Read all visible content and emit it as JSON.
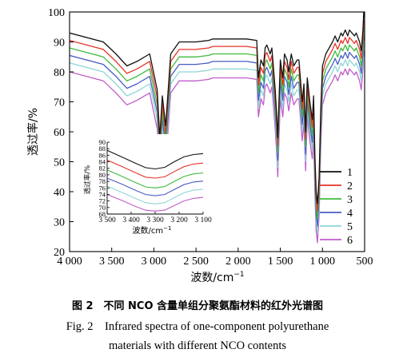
{
  "chart_data": [
    {
      "type": "line",
      "title": "",
      "xlabel": "波数/cm",
      "xlabel_sup": "−1",
      "ylabel": "透过率/%",
      "xlim": [
        4000,
        500
      ],
      "ylim": [
        20,
        100
      ],
      "x_reversed": true,
      "xticks": [
        4000,
        3500,
        3000,
        2500,
        2000,
        1500,
        1000,
        500
      ],
      "xtick_labels": [
        "4 000",
        "3 500",
        "3 000",
        "2 500",
        "2 000",
        "1 500",
        "1 000",
        "500"
      ],
      "yticks": [
        20,
        30,
        40,
        50,
        60,
        70,
        80,
        90,
        100
      ],
      "ytick_labels": [
        "20",
        "30",
        "40",
        "50",
        "60",
        "70",
        "80",
        "90",
        "100"
      ],
      "grid": false,
      "legend_position": "right-bottom",
      "series": [
        {
          "name": "1",
          "color": "#111111",
          "offset": 0,
          "x": [
            4000,
            3600,
            3450,
            3320,
            3200,
            3050,
            2960,
            2930,
            2900,
            2860,
            2800,
            2700,
            2500,
            2350,
            2300,
            2100,
            1900,
            1780,
            1760,
            1730,
            1700,
            1680,
            1660,
            1620,
            1600,
            1560,
            1540,
            1530,
            1500,
            1470,
            1450,
            1420,
            1400,
            1370,
            1340,
            1300,
            1280,
            1240,
            1220,
            1200,
            1180,
            1150,
            1120,
            1105,
            1090,
            1075,
            1060,
            1040,
            1020,
            1000,
            960,
            920,
            880,
            850,
            820,
            780,
            760,
            730,
            700,
            680,
            650,
            620,
            600,
            560,
            540,
            520,
            510,
            500
          ],
          "y": [
            93,
            90,
            86,
            82,
            83.5,
            86,
            74,
            58,
            72,
            62,
            86,
            90,
            90,
            90.5,
            91,
            91,
            91,
            90.5,
            78,
            84,
            82,
            88,
            89,
            86,
            88,
            74,
            64,
            58,
            84,
            78,
            86,
            84,
            80,
            86,
            82,
            84,
            84,
            70,
            76,
            60,
            78,
            70,
            64,
            72,
            52,
            40,
            36,
            45,
            68,
            82,
            86,
            88,
            90,
            92,
            90,
            93,
            92,
            94,
            92,
            94,
            93,
            92,
            93,
            90,
            87,
            94,
            100,
            98
          ]
        },
        {
          "name": "2",
          "color": "#e63329",
          "offset": -2.5,
          "x": [
            4000,
            3600,
            3450,
            3320,
            3200,
            3050,
            2960,
            2930,
            2900,
            2860,
            2800,
            2700,
            2500,
            2350,
            2300,
            2100,
            1900,
            1780,
            1760,
            1730,
            1700,
            1680,
            1660,
            1620,
            1600,
            1560,
            1540,
            1530,
            1500,
            1470,
            1450,
            1420,
            1400,
            1370,
            1340,
            1300,
            1280,
            1240,
            1220,
            1200,
            1180,
            1150,
            1120,
            1105,
            1090,
            1075,
            1060,
            1040,
            1020,
            1000,
            960,
            920,
            880,
            850,
            820,
            780,
            760,
            730,
            700,
            680,
            650,
            620,
            600,
            560,
            540,
            520,
            510,
            500
          ],
          "y": [
            93,
            90,
            86,
            82,
            83.5,
            86,
            74,
            58,
            72,
            62,
            86,
            90,
            90,
            90.5,
            91,
            91,
            91,
            90.5,
            78,
            84,
            82,
            88,
            89,
            86,
            88,
            74,
            64,
            58,
            84,
            78,
            86,
            84,
            80,
            86,
            82,
            84,
            84,
            70,
            76,
            60,
            78,
            70,
            64,
            72,
            52,
            40,
            36,
            45,
            68,
            82,
            86,
            88,
            90,
            92,
            90,
            93,
            92,
            94,
            92,
            94,
            93,
            92,
            93,
            90,
            87,
            94,
            100,
            98
          ]
        },
        {
          "name": "3",
          "color": "#3dbb3d",
          "offset": -5,
          "x": [
            4000,
            3600,
            3450,
            3320,
            3200,
            3050,
            2960,
            2930,
            2900,
            2860,
            2800,
            2700,
            2500,
            2350,
            2300,
            2100,
            1900,
            1780,
            1760,
            1730,
            1700,
            1680,
            1660,
            1620,
            1600,
            1560,
            1540,
            1530,
            1500,
            1470,
            1450,
            1420,
            1400,
            1370,
            1340,
            1300,
            1280,
            1240,
            1220,
            1200,
            1180,
            1150,
            1120,
            1105,
            1090,
            1075,
            1060,
            1040,
            1020,
            1000,
            960,
            920,
            880,
            850,
            820,
            780,
            760,
            730,
            700,
            680,
            650,
            620,
            600,
            560,
            540,
            520,
            510,
            500
          ],
          "y": [
            93,
            90,
            86,
            82,
            83.5,
            86,
            74,
            58,
            72,
            62,
            86,
            90,
            90,
            90.5,
            91,
            91,
            91,
            90.5,
            78,
            84,
            82,
            88,
            89,
            86,
            88,
            74,
            64,
            58,
            84,
            78,
            86,
            84,
            80,
            86,
            82,
            84,
            84,
            70,
            76,
            60,
            78,
            70,
            64,
            72,
            52,
            40,
            36,
            45,
            68,
            82,
            86,
            88,
            90,
            92,
            90,
            93,
            92,
            94,
            92,
            94,
            93,
            92,
            93,
            90,
            87,
            94,
            100,
            98
          ]
        },
        {
          "name": "4",
          "color": "#4a5bc4",
          "offset": -7.5,
          "x": [
            4000,
            3600,
            3450,
            3320,
            3200,
            3050,
            2960,
            2930,
            2900,
            2860,
            2800,
            2700,
            2500,
            2350,
            2300,
            2100,
            1900,
            1780,
            1760,
            1730,
            1700,
            1680,
            1660,
            1620,
            1600,
            1560,
            1540,
            1530,
            1500,
            1470,
            1450,
            1420,
            1400,
            1370,
            1340,
            1300,
            1280,
            1240,
            1220,
            1200,
            1180,
            1150,
            1120,
            1105,
            1090,
            1075,
            1060,
            1040,
            1020,
            1000,
            960,
            920,
            880,
            850,
            820,
            780,
            760,
            730,
            700,
            680,
            650,
            620,
            600,
            560,
            540,
            520,
            510,
            500
          ],
          "y": [
            93,
            90,
            86,
            82,
            83.5,
            86,
            74,
            58,
            72,
            62,
            86,
            90,
            90,
            90.5,
            91,
            91,
            91,
            90.5,
            78,
            84,
            82,
            88,
            89,
            86,
            88,
            74,
            64,
            58,
            84,
            78,
            86,
            84,
            80,
            86,
            82,
            84,
            84,
            70,
            76,
            60,
            78,
            70,
            64,
            72,
            52,
            40,
            36,
            45,
            68,
            82,
            86,
            88,
            90,
            92,
            90,
            93,
            92,
            94,
            92,
            94,
            93,
            92,
            93,
            90,
            87,
            94,
            100,
            98
          ]
        },
        {
          "name": "5",
          "color": "#8fd6d6",
          "offset": -10,
          "x": [
            4000,
            3600,
            3450,
            3320,
            3200,
            3050,
            2960,
            2930,
            2900,
            2860,
            2800,
            2700,
            2500,
            2350,
            2300,
            2100,
            1900,
            1780,
            1760,
            1730,
            1700,
            1680,
            1660,
            1620,
            1600,
            1560,
            1540,
            1530,
            1500,
            1470,
            1450,
            1420,
            1400,
            1370,
            1340,
            1300,
            1280,
            1240,
            1220,
            1200,
            1180,
            1150,
            1120,
            1105,
            1090,
            1075,
            1060,
            1040,
            1020,
            1000,
            960,
            920,
            880,
            850,
            820,
            780,
            760,
            730,
            700,
            680,
            650,
            620,
            600,
            560,
            540,
            520,
            510,
            500
          ],
          "y": [
            93,
            90,
            86,
            82,
            83.5,
            86,
            74,
            58,
            72,
            62,
            86,
            90,
            90,
            90.5,
            91,
            91,
            91,
            90.5,
            78,
            84,
            82,
            88,
            89,
            86,
            88,
            74,
            64,
            58,
            84,
            78,
            86,
            84,
            80,
            86,
            82,
            84,
            84,
            70,
            76,
            60,
            78,
            70,
            64,
            72,
            52,
            40,
            36,
            45,
            68,
            82,
            86,
            88,
            90,
            92,
            90,
            93,
            92,
            94,
            92,
            94,
            93,
            92,
            93,
            90,
            87,
            94,
            100,
            98
          ]
        },
        {
          "name": "6",
          "color": "#c05cc8",
          "offset": -13,
          "x": [
            4000,
            3600,
            3450,
            3320,
            3200,
            3050,
            2960,
            2930,
            2900,
            2860,
            2800,
            2700,
            2500,
            2350,
            2300,
            2100,
            1900,
            1780,
            1760,
            1730,
            1700,
            1680,
            1660,
            1620,
            1600,
            1560,
            1540,
            1530,
            1500,
            1470,
            1450,
            1420,
            1400,
            1370,
            1340,
            1300,
            1280,
            1240,
            1220,
            1200,
            1180,
            1150,
            1120,
            1105,
            1090,
            1075,
            1060,
            1040,
            1020,
            1000,
            960,
            920,
            880,
            850,
            820,
            780,
            760,
            730,
            700,
            680,
            650,
            620,
            600,
            560,
            540,
            520,
            510,
            500
          ],
          "y": [
            93,
            90,
            86,
            82,
            83.5,
            86,
            74,
            58,
            72,
            62,
            86,
            90,
            90,
            90.5,
            91,
            91,
            91,
            90.5,
            78,
            84,
            82,
            88,
            89,
            86,
            88,
            74,
            64,
            58,
            84,
            78,
            86,
            84,
            80,
            86,
            82,
            84,
            84,
            70,
            76,
            60,
            78,
            70,
            64,
            72,
            52,
            40,
            36,
            45,
            68,
            82,
            86,
            88,
            90,
            92,
            90,
            93,
            92,
            94,
            92,
            94,
            93,
            92,
            93,
            90,
            87,
            94,
            100,
            98
          ]
        }
      ]
    },
    {
      "type": "line",
      "title": "",
      "xlabel": "波数/cm",
      "xlabel_sup": "−1",
      "ylabel": "透过率/%",
      "xlim": [
        3500,
        3100
      ],
      "ylim": [
        68,
        90
      ],
      "x_reversed": true,
      "xticks": [
        3500,
        3400,
        3300,
        3200,
        3100
      ],
      "xtick_labels": [
        "3 500",
        "3 400",
        "3 300",
        "3 200",
        "3 100"
      ],
      "yticks": [
        68,
        70,
        72,
        74,
        76,
        78,
        80,
        82,
        84,
        86,
        88,
        90
      ],
      "ytick_labels": [
        "68",
        "70",
        "72",
        "74",
        "76",
        "78",
        "80",
        "82",
        "84",
        "86",
        "88",
        "90"
      ],
      "grid": false,
      "series": [
        {
          "name": "1",
          "color": "#111111",
          "x": [
            3500,
            3440,
            3380,
            3340,
            3300,
            3260,
            3220,
            3180,
            3140,
            3100
          ],
          "y": [
            87.5,
            85.5,
            83.5,
            82.2,
            81.8,
            82.3,
            84,
            85.5,
            86.2,
            86.5
          ]
        },
        {
          "name": "2",
          "color": "#e63329",
          "x": [
            3500,
            3440,
            3380,
            3340,
            3300,
            3260,
            3220,
            3180,
            3140,
            3100
          ],
          "y": [
            84.5,
            82.6,
            80.6,
            79.3,
            79,
            79.4,
            81,
            82.5,
            83.3,
            83.6
          ]
        },
        {
          "name": "3",
          "color": "#3dbb3d",
          "x": [
            3500,
            3440,
            3380,
            3340,
            3300,
            3260,
            3220,
            3180,
            3140,
            3100
          ],
          "y": [
            81.5,
            79.6,
            77.6,
            76.3,
            76,
            76.4,
            78,
            79.5,
            80.3,
            80.6
          ]
        },
        {
          "name": "4",
          "color": "#4a5bc4",
          "x": [
            3500,
            3440,
            3380,
            3340,
            3300,
            3260,
            3220,
            3180,
            3140,
            3100
          ],
          "y": [
            79,
            77.2,
            75.2,
            74,
            73.6,
            74,
            75.5,
            77,
            77.8,
            78.1
          ]
        },
        {
          "name": "5",
          "color": "#8fd6d6",
          "x": [
            3500,
            3440,
            3380,
            3340,
            3300,
            3260,
            3220,
            3180,
            3140,
            3100
          ],
          "y": [
            76.5,
            74.7,
            72.7,
            71.5,
            71.1,
            71.5,
            73,
            74.5,
            75.3,
            75.6
          ]
        },
        {
          "name": "6",
          "color": "#c05cc8",
          "x": [
            3500,
            3440,
            3380,
            3340,
            3300,
            3260,
            3220,
            3180,
            3140,
            3100
          ],
          "y": [
            74,
            72.2,
            70.3,
            69.2,
            68.9,
            69.2,
            70.6,
            72,
            72.8,
            73.1
          ]
        }
      ]
    }
  ],
  "caption": {
    "zh": "图 2　不同 NCO 含量单组分聚氨酯材料的红外光谱图",
    "en_line1": "Fig. 2　Infrared spectra of one-component polyurethane",
    "en_line2": "materials with different NCO contents"
  }
}
